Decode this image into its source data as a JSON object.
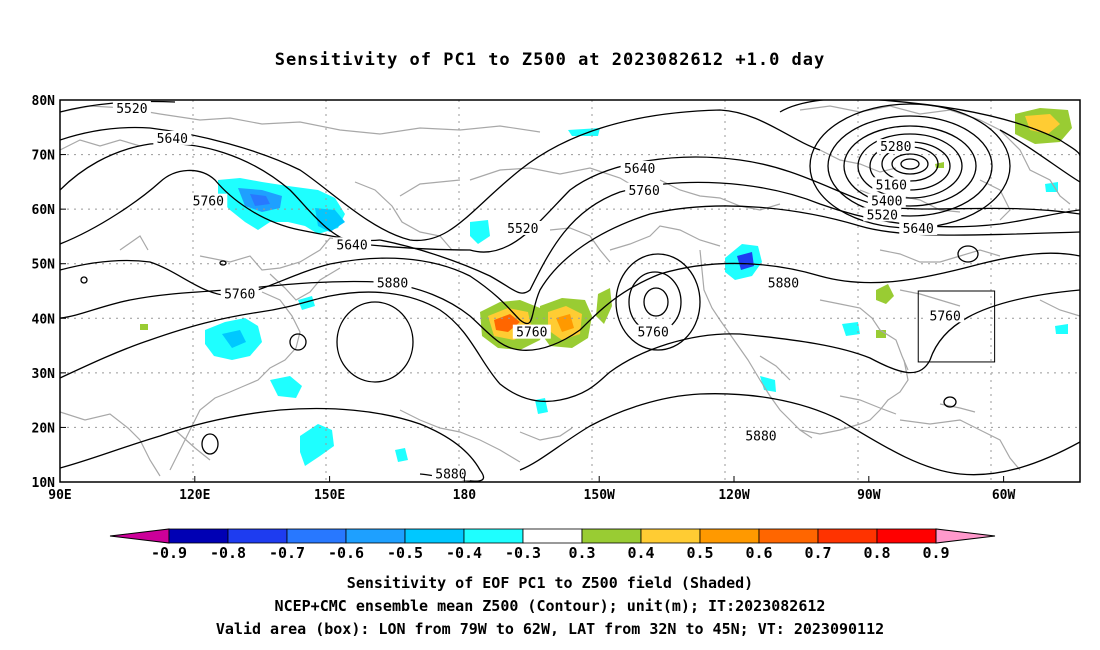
{
  "title": "Sensitivity of PC1 to Z500 at 2023082612 +1.0 day",
  "lat_labels": [
    {
      "text": "80N",
      "lat": 80
    },
    {
      "text": "70N",
      "lat": 70
    },
    {
      "text": "60N",
      "lat": 60
    },
    {
      "text": "50N",
      "lat": 50
    },
    {
      "text": "40N",
      "lat": 40
    },
    {
      "text": "30N",
      "lat": 30
    },
    {
      "text": "20N",
      "lat": 20
    },
    {
      "text": "10N",
      "lat": 10
    }
  ],
  "lon_labels": [
    {
      "text": "90E",
      "lon": 90
    },
    {
      "text": "120E",
      "lon": 120
    },
    {
      "text": "150E",
      "lon": 150
    },
    {
      "text": "180",
      "lon": 180
    },
    {
      "text": "150W",
      "lon": 210
    },
    {
      "text": "120W",
      "lon": 240
    },
    {
      "text": "90W",
      "lon": 270
    },
    {
      "text": "60W",
      "lon": 300
    }
  ],
  "contour_labels": [
    {
      "text": "5520",
      "lon": 106,
      "lat": 78
    },
    {
      "text": "5640",
      "lon": 115,
      "lat": 72.5
    },
    {
      "text": "5760",
      "lon": 123,
      "lat": 61
    },
    {
      "text": "5640",
      "lon": 155,
      "lat": 53
    },
    {
      "text": "5520",
      "lon": 193,
      "lat": 56
    },
    {
      "text": "5640",
      "lon": 219,
      "lat": 67
    },
    {
      "text": "5760",
      "lon": 220,
      "lat": 63
    },
    {
      "text": "5760",
      "lon": 130,
      "lat": 44
    },
    {
      "text": "5880",
      "lon": 164,
      "lat": 46
    },
    {
      "text": "5760",
      "lon": 195,
      "lat": 37
    },
    {
      "text": "5760",
      "lon": 222,
      "lat": 37
    },
    {
      "text": "5880",
      "lon": 251,
      "lat": 46
    },
    {
      "text": "5280",
      "lon": 276,
      "lat": 71
    },
    {
      "text": "5160",
      "lon": 275,
      "lat": 64
    },
    {
      "text": "5400",
      "lon": 274,
      "lat": 61
    },
    {
      "text": "5520",
      "lon": 273,
      "lat": 58.5
    },
    {
      "text": "5640",
      "lon": 281,
      "lat": 56
    },
    {
      "text": "5760",
      "lon": 287,
      "lat": 40
    },
    {
      "text": "5880",
      "lon": 246,
      "lat": 18
    },
    {
      "text": "5880",
      "lon": 177,
      "lat": 11
    }
  ],
  "valid_box": {
    "lon_min": -79,
    "lon_max": -62,
    "lat_min": 32,
    "lat_max": 45
  },
  "colorbar": {
    "labels": [
      "-0.9",
      "-0.8",
      "-0.7",
      "-0.6",
      "-0.5",
      "-0.4",
      "-0.3",
      "0.3",
      "0.4",
      "0.5",
      "0.6",
      "0.7",
      "0.8",
      "0.9"
    ],
    "colors": [
      "#0000b4",
      "#1e3cf0",
      "#2878ff",
      "#1ea0ff",
      "#00c8ff",
      "#1effff",
      "#ffffff",
      "#99cc33",
      "#ffcc33",
      "#ff9900",
      "#ff6600",
      "#ff3300",
      "#ff0000"
    ],
    "low_end_color": "#cc0099",
    "high_end_color": "#ff99cc"
  },
  "captions": [
    "Sensitivity of EOF PC1 to Z500 field (Shaded)",
    "NCEP+CMC ensemble mean Z500 (Contour); unit(m); IT:2023082612",
    "Valid area (box): LON from 79W to 62W, LAT from 32N to 45N; VT: 2023090112"
  ],
  "colors": {
    "coastline": "#a8a8a8",
    "grid": "#999999",
    "contour": "#000000"
  }
}
